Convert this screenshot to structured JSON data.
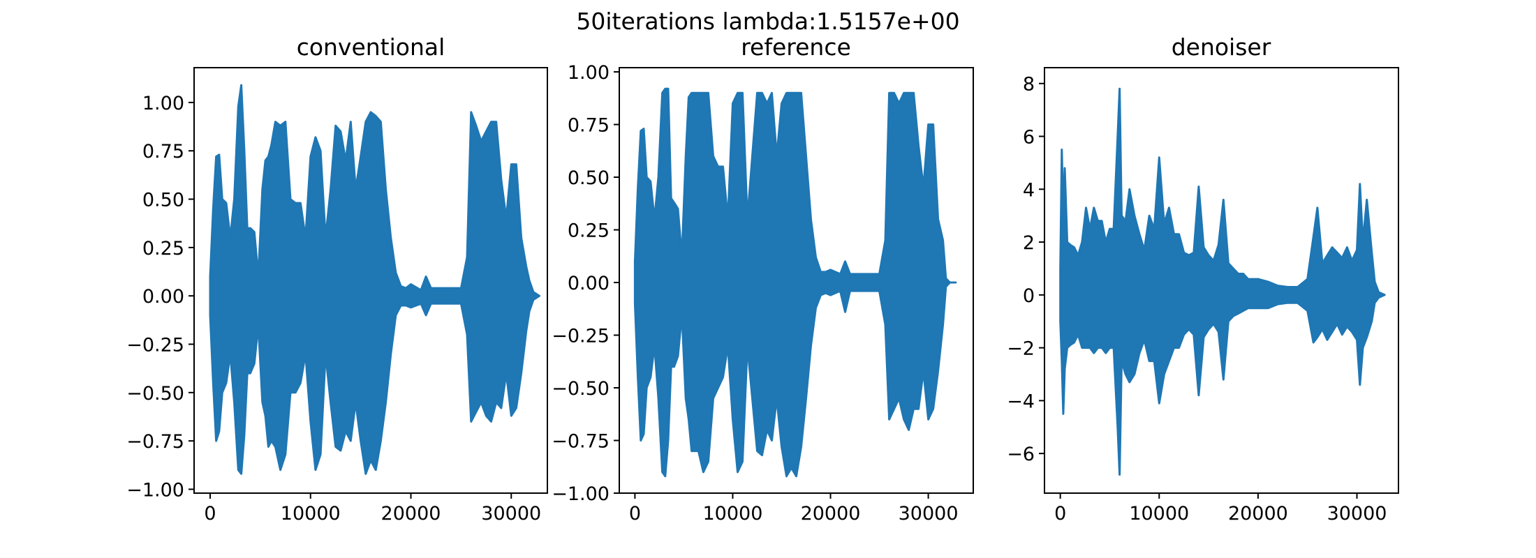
{
  "figure": {
    "suptitle": "50iterations lambda:1.5157e+00",
    "signal_color": "#1f77b4",
    "background": "#ffffff"
  },
  "chart_data": [
    {
      "type": "line",
      "title": "conventional",
      "xlabel": "",
      "ylabel": "",
      "xlim": [
        -1600,
        33600
      ],
      "ylim": [
        -1.02,
        1.18
      ],
      "xticks": [
        0,
        10000,
        20000,
        30000
      ],
      "xtick_labels": [
        "0",
        "10000",
        "20000",
        "30000"
      ],
      "yticks": [
        -1.0,
        -0.75,
        -0.5,
        -0.25,
        0.0,
        0.25,
        0.5,
        0.75,
        1.0
      ],
      "ytick_labels": [
        "−1.00",
        "−0.75",
        "−0.50",
        "−0.25",
        "0.00",
        "0.25",
        "0.50",
        "0.75",
        "1.00"
      ],
      "grid": false,
      "series": [
        {
          "envelope_x": [
            0,
            300,
            600,
            900,
            1200,
            1600,
            2000,
            2400,
            2800,
            3100,
            3400,
            3700,
            4000,
            4400,
            4800,
            5200,
            5500,
            5800,
            6100,
            6500,
            7000,
            7500,
            8000,
            8500,
            9000,
            9500,
            10000,
            10500,
            11000,
            11500,
            12000,
            12500,
            13000,
            13500,
            14000,
            14500,
            15000,
            15500,
            16000,
            16500,
            17000,
            17500,
            18000,
            18500,
            19000,
            19500,
            20000,
            21000,
            21500,
            22000,
            23000,
            24000,
            25000,
            25600,
            26000,
            26500,
            27000,
            27500,
            28000,
            28500,
            29000,
            29500,
            30000,
            30500,
            31000,
            31500,
            31800,
            32200,
            32800
          ],
          "envelope_max": [
            0.1,
            0.45,
            0.72,
            0.73,
            0.5,
            0.48,
            0.3,
            0.5,
            0.98,
            1.09,
            0.75,
            0.35,
            0.35,
            0.33,
            0.1,
            0.55,
            0.7,
            0.72,
            0.78,
            0.9,
            0.88,
            0.9,
            0.5,
            0.48,
            0.48,
            0.3,
            0.72,
            0.82,
            0.75,
            0.3,
            0.55,
            0.88,
            0.85,
            0.7,
            0.9,
            0.55,
            0.72,
            0.9,
            0.95,
            0.93,
            0.9,
            0.55,
            0.3,
            0.12,
            0.05,
            0.04,
            0.06,
            0.03,
            0.1,
            0.04,
            0.04,
            0.04,
            0.04,
            0.2,
            0.95,
            0.88,
            0.8,
            0.85,
            0.9,
            0.9,
            0.6,
            0.4,
            0.68,
            0.68,
            0.3,
            0.15,
            0.08,
            0.02,
            0.0
          ],
          "envelope_min": [
            -0.1,
            -0.45,
            -0.75,
            -0.7,
            -0.5,
            -0.45,
            -0.3,
            -0.55,
            -0.9,
            -0.92,
            -0.72,
            -0.4,
            -0.4,
            -0.35,
            -0.15,
            -0.55,
            -0.62,
            -0.78,
            -0.75,
            -0.78,
            -0.9,
            -0.82,
            -0.5,
            -0.5,
            -0.45,
            -0.3,
            -0.65,
            -0.9,
            -0.82,
            -0.3,
            -0.55,
            -0.78,
            -0.8,
            -0.7,
            -0.75,
            -0.55,
            -0.75,
            -0.92,
            -0.85,
            -0.9,
            -0.75,
            -0.55,
            -0.3,
            -0.1,
            -0.05,
            -0.05,
            -0.06,
            -0.04,
            -0.1,
            -0.04,
            -0.04,
            -0.04,
            -0.04,
            -0.2,
            -0.65,
            -0.6,
            -0.55,
            -0.62,
            -0.65,
            -0.55,
            -0.58,
            -0.4,
            -0.62,
            -0.58,
            -0.4,
            -0.18,
            -0.08,
            -0.02,
            0.0
          ]
        }
      ]
    },
    {
      "type": "line",
      "title": "reference",
      "xlabel": "",
      "ylabel": "",
      "xlim": [
        -1600,
        34600
      ],
      "ylim": [
        -1.0,
        1.02
      ],
      "xticks": [
        0,
        10000,
        20000,
        30000
      ],
      "xtick_labels": [
        "0",
        "10000",
        "20000",
        "30000"
      ],
      "yticks": [
        -1.0,
        -0.75,
        -0.5,
        -0.25,
        0.0,
        0.25,
        0.5,
        0.75,
        1.0
      ],
      "ytick_labels": [
        "−1.00",
        "−0.75",
        "−0.50",
        "−0.25",
        "0.00",
        "0.25",
        "0.50",
        "0.75",
        "1.00"
      ],
      "grid": false,
      "series": [
        {
          "envelope_x": [
            0,
            300,
            600,
            900,
            1200,
            1600,
            2000,
            2400,
            2800,
            3100,
            3400,
            3700,
            4000,
            4400,
            4800,
            5200,
            5500,
            5800,
            6100,
            6500,
            7000,
            7500,
            8000,
            8500,
            9000,
            9500,
            10000,
            10500,
            11000,
            11500,
            12000,
            12500,
            13000,
            13500,
            14000,
            14500,
            15000,
            15500,
            16000,
            16500,
            17000,
            17500,
            18000,
            18500,
            19000,
            19500,
            20000,
            21000,
            21500,
            22000,
            23000,
            24000,
            25000,
            25600,
            26000,
            26500,
            27000,
            27500,
            28000,
            28500,
            29000,
            29500,
            30000,
            30500,
            31000,
            31500,
            31800,
            32200,
            32800
          ],
          "envelope_max": [
            0.1,
            0.45,
            0.72,
            0.73,
            0.5,
            0.48,
            0.3,
            0.5,
            0.9,
            0.92,
            0.92,
            0.4,
            0.38,
            0.35,
            0.12,
            0.6,
            0.88,
            0.9,
            0.9,
            0.9,
            0.9,
            0.9,
            0.6,
            0.55,
            0.55,
            0.3,
            0.85,
            0.9,
            0.9,
            0.3,
            0.6,
            0.9,
            0.9,
            0.85,
            0.9,
            0.6,
            0.85,
            0.9,
            0.9,
            0.9,
            0.9,
            0.6,
            0.3,
            0.12,
            0.05,
            0.05,
            0.06,
            0.04,
            0.1,
            0.04,
            0.04,
            0.04,
            0.04,
            0.2,
            0.9,
            0.9,
            0.85,
            0.9,
            0.9,
            0.9,
            0.65,
            0.45,
            0.75,
            0.75,
            0.3,
            0.2,
            0.02,
            0.0,
            0.0
          ],
          "envelope_min": [
            -0.1,
            -0.45,
            -0.75,
            -0.72,
            -0.5,
            -0.45,
            -0.3,
            -0.55,
            -0.9,
            -0.92,
            -0.75,
            -0.4,
            -0.4,
            -0.35,
            -0.15,
            -0.55,
            -0.65,
            -0.8,
            -0.8,
            -0.8,
            -0.9,
            -0.85,
            -0.55,
            -0.5,
            -0.45,
            -0.3,
            -0.65,
            -0.9,
            -0.85,
            -0.3,
            -0.55,
            -0.8,
            -0.82,
            -0.7,
            -0.75,
            -0.55,
            -0.78,
            -0.92,
            -0.88,
            -0.92,
            -0.78,
            -0.55,
            -0.3,
            -0.12,
            -0.06,
            -0.05,
            -0.06,
            -0.04,
            -0.14,
            -0.04,
            -0.04,
            -0.04,
            -0.04,
            -0.2,
            -0.65,
            -0.6,
            -0.55,
            -0.65,
            -0.7,
            -0.6,
            -0.6,
            -0.42,
            -0.65,
            -0.6,
            -0.42,
            -0.2,
            -0.02,
            0.0,
            0.0
          ]
        }
      ]
    },
    {
      "type": "line",
      "title": "denoiser",
      "xlabel": "",
      "ylabel": "",
      "xlim": [
        -1600,
        34200
      ],
      "ylim": [
        -7.5,
        8.6
      ],
      "xticks": [
        0,
        10000,
        20000,
        30000
      ],
      "xtick_labels": [
        "0",
        "10000",
        "20000",
        "30000"
      ],
      "yticks": [
        -6,
        -4,
        -2,
        0,
        2,
        4,
        6,
        8
      ],
      "ytick_labels": [
        "−6",
        "−4",
        "−2",
        "0",
        "2",
        "4",
        "6",
        "8"
      ],
      "grid": false,
      "series": [
        {
          "envelope_x": [
            0,
            150,
            300,
            450,
            700,
            1000,
            1400,
            1800,
            2200,
            2600,
            3000,
            3400,
            3800,
            4200,
            4600,
            5000,
            5400,
            5800,
            6000,
            6200,
            6600,
            7000,
            7500,
            8000,
            8500,
            9000,
            9500,
            10000,
            10500,
            11000,
            11500,
            12000,
            12500,
            13000,
            13500,
            14000,
            14500,
            15000,
            15500,
            16000,
            16500,
            17000,
            17500,
            18000,
            18500,
            19000,
            20000,
            21000,
            22000,
            23000,
            24000,
            25000,
            25600,
            26000,
            26500,
            27000,
            27500,
            28000,
            28500,
            29000,
            29500,
            30000,
            30300,
            30600,
            31000,
            31500,
            31800,
            32200,
            32800
          ],
          "envelope_max": [
            1.0,
            5.5,
            3.0,
            4.8,
            2.0,
            1.9,
            1.8,
            1.5,
            2.0,
            3.3,
            2.5,
            3.3,
            2.8,
            2.8,
            2.0,
            2.5,
            2.5,
            6.0,
            7.8,
            3.0,
            2.8,
            4.0,
            3.0,
            2.3,
            1.7,
            3.0,
            2.5,
            5.2,
            2.7,
            3.3,
            2.3,
            2.3,
            1.6,
            1.5,
            1.6,
            4.1,
            1.8,
            1.5,
            1.3,
            1.9,
            3.6,
            1.2,
            1.0,
            0.8,
            0.8,
            0.6,
            0.6,
            0.5,
            0.35,
            0.3,
            0.3,
            0.6,
            2.2,
            3.3,
            1.2,
            1.5,
            1.8,
            1.6,
            1.4,
            1.8,
            1.3,
            1.7,
            4.2,
            2.0,
            3.6,
            1.6,
            0.5,
            0.1,
            0.0
          ],
          "envelope_min": [
            -1.0,
            -2.5,
            -4.5,
            -2.8,
            -2.0,
            -1.9,
            -1.8,
            -1.5,
            -2.0,
            -2.0,
            -2.0,
            -2.2,
            -2.0,
            -2.0,
            -2.2,
            -2.0,
            -2.0,
            -5.0,
            -6.8,
            -2.5,
            -3.0,
            -3.3,
            -3.0,
            -2.2,
            -1.7,
            -2.5,
            -2.5,
            -4.1,
            -3.0,
            -2.5,
            -2.0,
            -2.0,
            -1.5,
            -1.3,
            -1.5,
            -3.8,
            -1.6,
            -1.3,
            -1.1,
            -1.4,
            -3.2,
            -1.0,
            -0.8,
            -0.7,
            -0.6,
            -0.5,
            -0.5,
            -0.5,
            -0.35,
            -0.3,
            -0.3,
            -0.6,
            -1.8,
            -1.6,
            -1.3,
            -1.7,
            -1.4,
            -1.1,
            -1.5,
            -1.2,
            -1.4,
            -1.7,
            -3.4,
            -2.0,
            -1.6,
            -1.0,
            -0.3,
            -0.1,
            0.0
          ]
        }
      ]
    }
  ]
}
